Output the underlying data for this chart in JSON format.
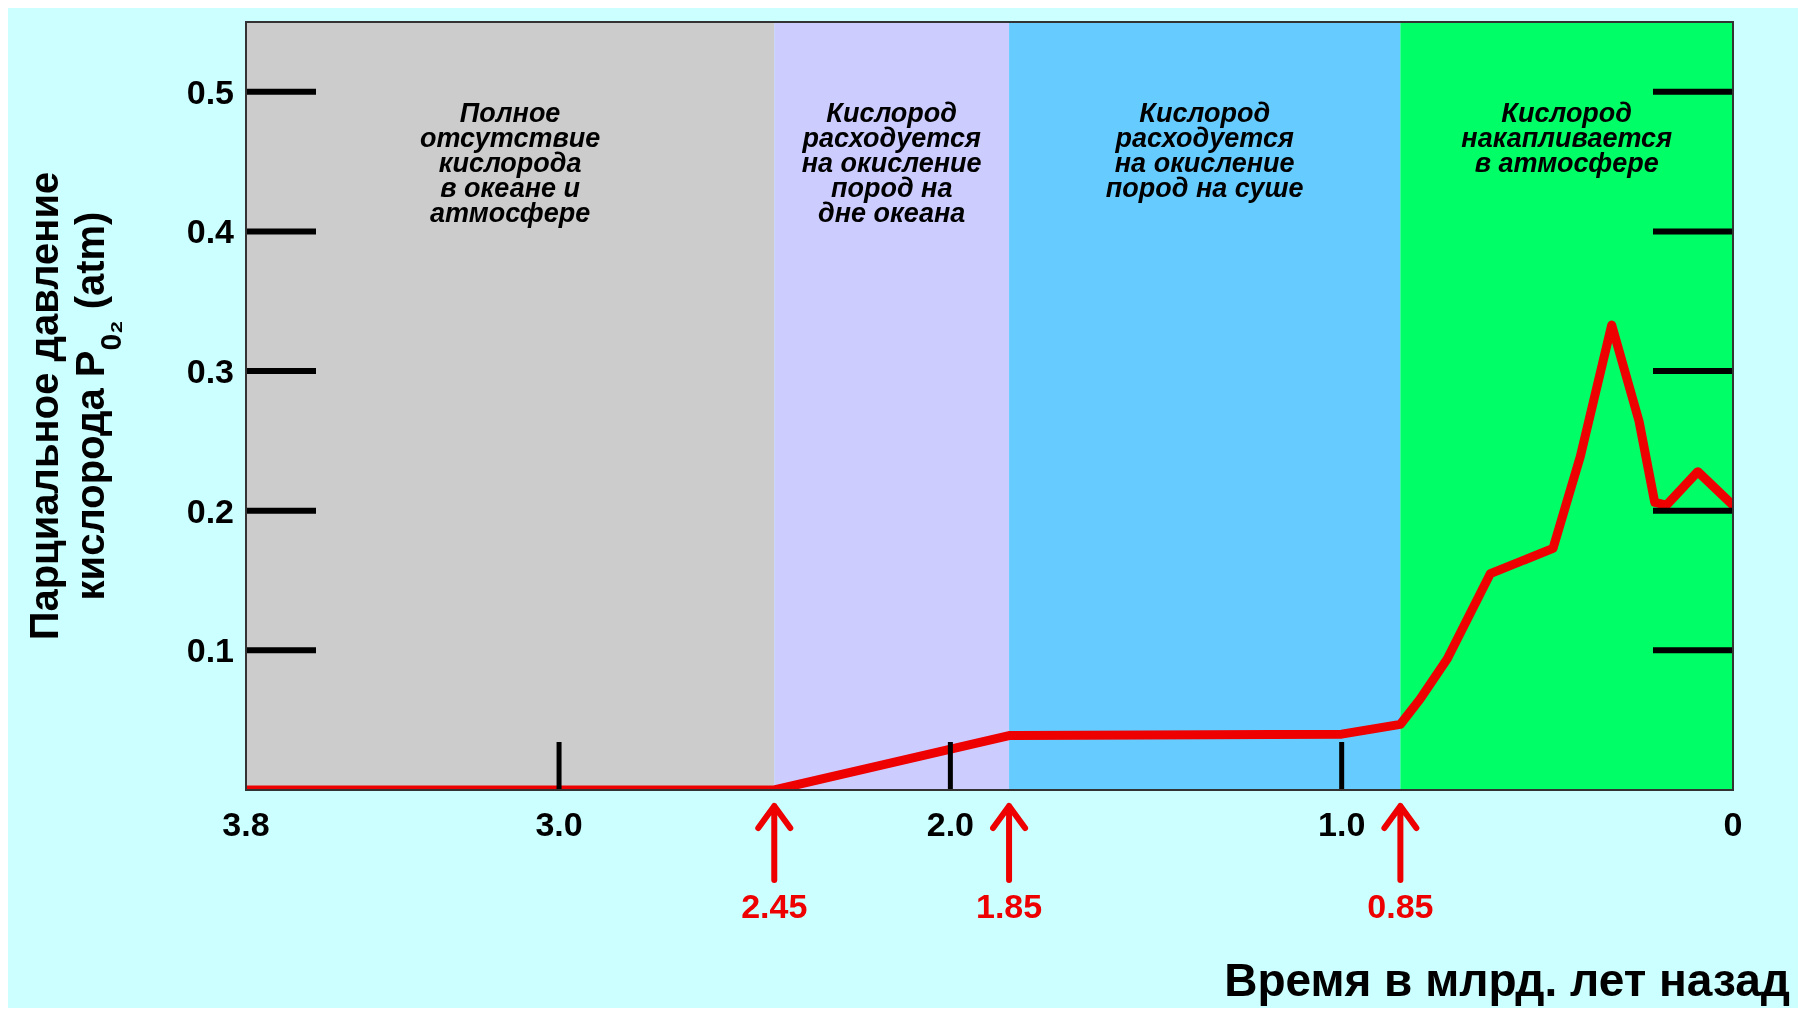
{
  "chart_data": {
    "type": "line",
    "xlabel": "Время в млрд. лет назад",
    "ylabel": "Парциальное давление\nкислорода P$_{0₂}$ (atm)",
    "x": [
      3.8,
      2.45,
      1.85,
      1.0,
      0.85,
      0.8,
      0.73,
      0.62,
      0.46,
      0.39,
      0.31,
      0.24,
      0.2,
      0.17,
      0.09,
      0
    ],
    "series": [
      {
        "color": "#ee0000",
        "values": [
          0,
          0,
          0.039,
          0.04,
          0.047,
          0.065,
          0.094,
          0.155,
          0.173,
          0.239,
          0.333,
          0.264,
          0.206,
          0.204,
          0.228,
          0.204
        ]
      }
    ],
    "xlim": [
      3.8,
      0
    ],
    "xticks": [
      3.8,
      {
        "value": 3.0,
        "label": "3.0"
      },
      {
        "value": 2.0,
        "label": "2.0"
      },
      {
        "value": 1.0,
        "label": "1.0"
      },
      0
    ],
    "ylim": [
      0,
      0.55
    ],
    "yticks": [
      0.1,
      0.2,
      0.3,
      0.4,
      0.5
    ],
    "bands": [
      {
        "axis": "x",
        "from": 3.8,
        "to": 2.45,
        "color": "#cccccc",
        "label": "Полное\nотсутствие\nкислорода\nв океане и\nатмосфере"
      },
      {
        "axis": "x",
        "from": 2.45,
        "to": 1.85,
        "color": "#ccccff",
        "label": "Кислород\nрасходуется\nна окисление\nпород на\nдне океана"
      },
      {
        "axis": "x",
        "from": 1.85,
        "to": 0.85,
        "color": "#66ccff",
        "label": "Кислород\nрасходуется\nна окисление\nпород на суше"
      },
      {
        "axis": "x",
        "from": 0.85,
        "to": 0,
        "color": "#00ff66",
        "label": "Кислород\nнакапливается\nв атмосфере"
      }
    ],
    "annotations": [
      {
        "text": "2.45",
        "x": 2.45,
        "y": 0
      },
      {
        "text": "1.85",
        "x": 1.85,
        "y": 0
      },
      {
        "text": "0.85",
        "x": 0.85,
        "y": 0
      }
    ],
    "line_style": "solid",
    "marker": "none",
    "grid": false,
    "legend": false
  }
}
